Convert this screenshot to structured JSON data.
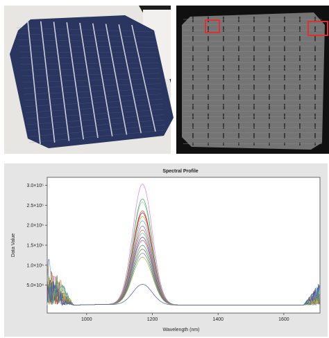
{
  "images": {
    "left_photo": {
      "subject": "monocrystalline-solar-cell-photo",
      "colors": {
        "cell": "#2a3560",
        "busbar": "#c8ccd8",
        "background": "#e8e6e2",
        "dark_corner": "#1a1a1a"
      }
    },
    "right_photo": {
      "subject": "electroluminescence-image-of-solar-cell",
      "colors": {
        "frame": "#111111",
        "cell": "#7a7a7a",
        "highlight_box": "#e03030"
      }
    }
  },
  "chart_data": {
    "type": "line",
    "title": "Spectral Profile",
    "xlabel": "Wavelength (nm)",
    "ylabel": "Data Value",
    "xlim": [
      880,
      1710
    ],
    "ylim": [
      -20000,
      320000
    ],
    "grid": false,
    "legend": "none",
    "background": "#e5e5e5",
    "x_ticks": [
      {
        "value": 1000,
        "label": "1000"
      },
      {
        "value": 1200,
        "label": "1200"
      },
      {
        "value": 1400,
        "label": "1400"
      },
      {
        "value": 1600,
        "label": "1600"
      }
    ],
    "y_ticks": [
      {
        "value": 50000,
        "label": "5.0×10⁴"
      },
      {
        "value": 100000,
        "label": "1.0×10⁵"
      },
      {
        "value": 150000,
        "label": "1.5×10⁵"
      },
      {
        "value": 200000,
        "label": "2.0×10⁵"
      },
      {
        "value": 250000,
        "label": "2.5×10⁵"
      },
      {
        "value": 300000,
        "label": "3.0×10⁵"
      }
    ],
    "peak_center_nm": 1170,
    "series": [
      {
        "color": "#e07ad8",
        "peak": 303000
      },
      {
        "color": "#4aa84a",
        "peak": 266000
      },
      {
        "color": "#8ec0c0",
        "peak": 258000
      },
      {
        "color": "#d04040",
        "peak": 236000
      },
      {
        "color": "#8a2020",
        "peak": 231000
      },
      {
        "color": "#c9a030",
        "peak": 222000
      },
      {
        "color": "#60a8d8",
        "peak": 211000
      },
      {
        "color": "#a060c0",
        "peak": 198000
      },
      {
        "color": "#d07030",
        "peak": 188000
      },
      {
        "color": "#50c0a0",
        "peak": 180000
      },
      {
        "color": "#7a3a8a",
        "peak": 170000
      },
      {
        "color": "#c05090",
        "peak": 162000
      },
      {
        "color": "#3a9a70",
        "peak": 150000
      },
      {
        "color": "#708030",
        "peak": 140000
      },
      {
        "color": "#5080c0",
        "peak": 130000
      },
      {
        "color": "#b0b040",
        "peak": 120000
      },
      {
        "color": "#405ab0",
        "peak": 52000
      }
    ]
  }
}
